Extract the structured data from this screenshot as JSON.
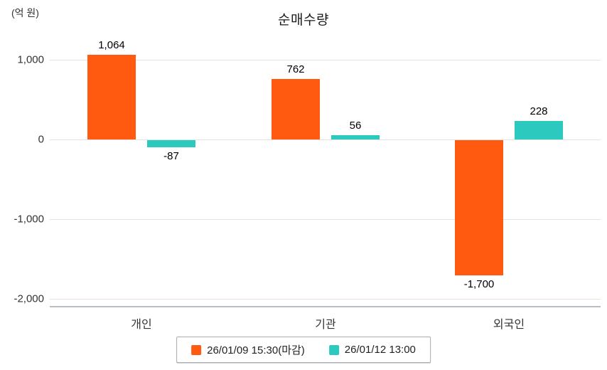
{
  "chart_data": {
    "type": "bar",
    "title": "순매수량",
    "unit_label": "(억 원)",
    "categories": [
      "개인",
      "기관",
      "외국인"
    ],
    "series": [
      {
        "name": "26/01/09 15:30(마감)",
        "color": "#ff5a0f",
        "values": [
          1064,
          762,
          -1700
        ],
        "labels": [
          "1,064",
          "762",
          "-1,700"
        ]
      },
      {
        "name": "26/01/12 13:00",
        "color": "#2cc9bf",
        "values": [
          -87,
          56,
          228
        ],
        "labels": [
          "-87",
          "56",
          "228"
        ]
      }
    ],
    "xlabel": "",
    "ylabel": "(억 원)",
    "y_ticks": [
      {
        "value": 1000,
        "label": "1,000"
      },
      {
        "value": 0,
        "label": "0"
      },
      {
        "value": -1000,
        "label": "-1,000"
      },
      {
        "value": -2000,
        "label": "-2,000"
      }
    ],
    "ylim": [
      -2000,
      1250
    ],
    "grid": true,
    "legend_position": "bottom"
  }
}
